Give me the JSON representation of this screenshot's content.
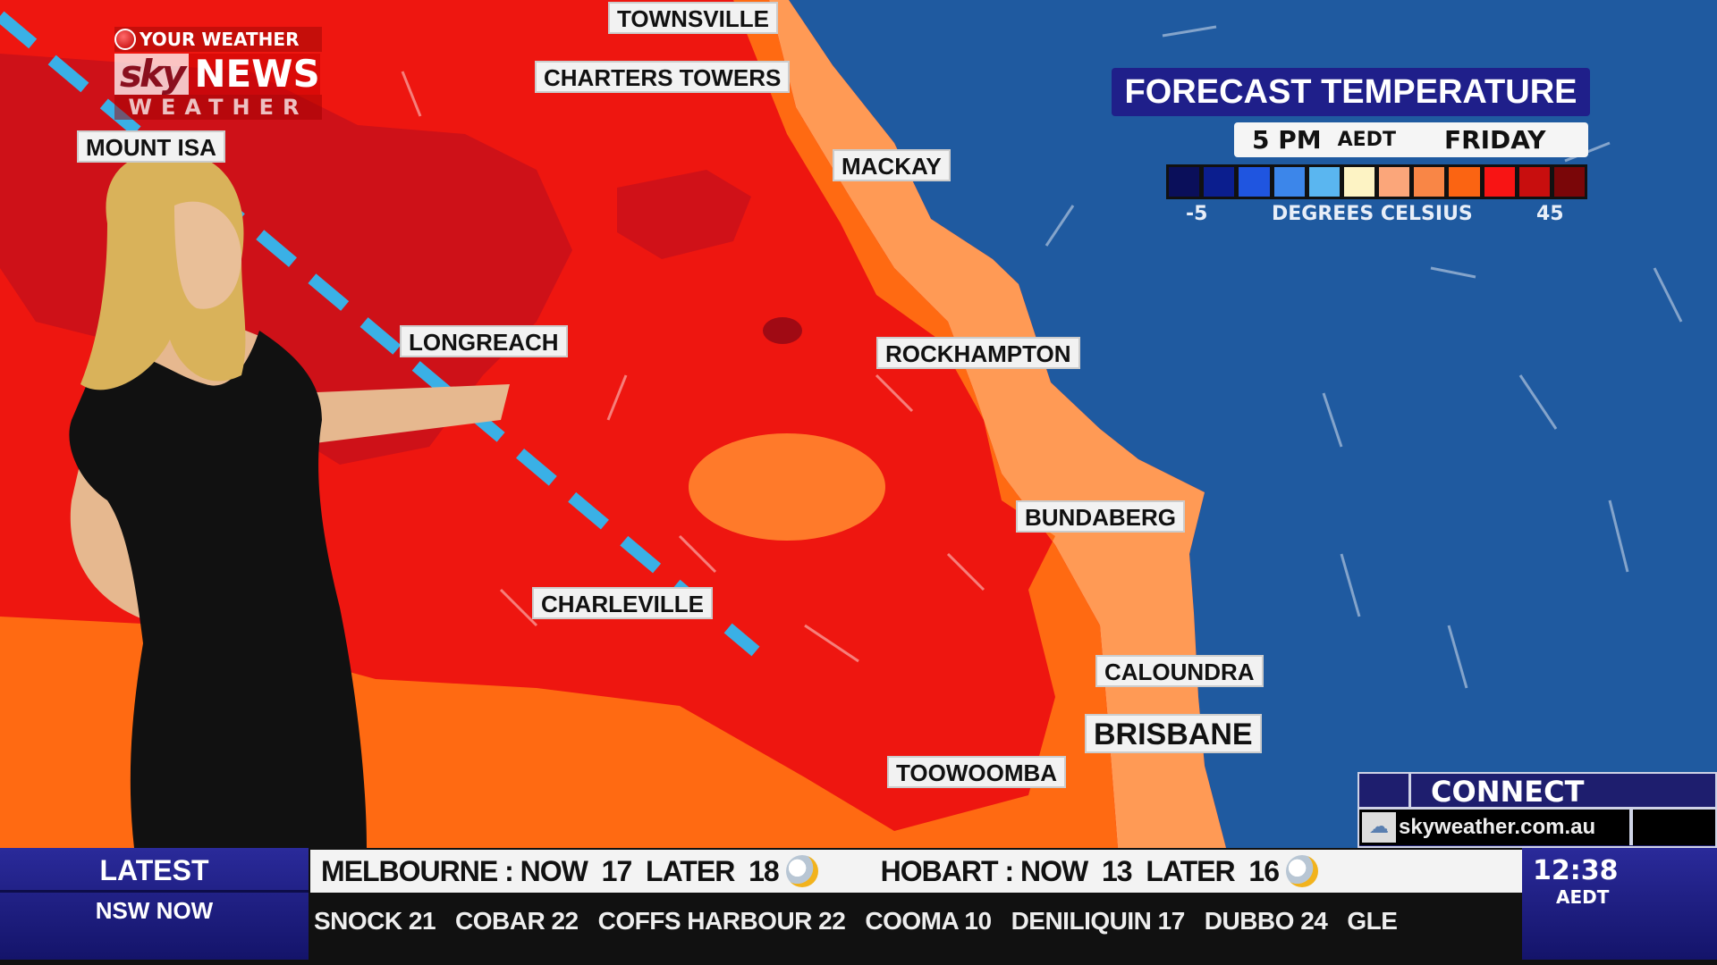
{
  "logo": {
    "line1": "YOUR WEATHER",
    "brand_sky": "sky",
    "brand_news": "NEWS",
    "line3": "WEATHER"
  },
  "map": {
    "cities": [
      {
        "name": "TOWNSVILLE"
      },
      {
        "name": "CHARTERS TOWERS"
      },
      {
        "name": "MOUNT ISA"
      },
      {
        "name": "MACKAY"
      },
      {
        "name": "LONGREACH"
      },
      {
        "name": "ROCKHAMPTON"
      },
      {
        "name": "BUNDABERG"
      },
      {
        "name": "CHARLEVILLE"
      },
      {
        "name": "CALOUNDRA"
      },
      {
        "name": "BRISBANE"
      },
      {
        "name": "TOOWOOMBA"
      }
    ],
    "colors": {
      "sea": "#1f5aa0",
      "hot": "#ee1610",
      "very_hot": "#c8101a",
      "warm": "#ff6a12",
      "mild": "#ff9a55",
      "front": "#3ab0e6"
    }
  },
  "legend": {
    "title": "FORECAST TEMPERATURE",
    "time": "5 PM",
    "timezone": "AEDT",
    "day": "FRIDAY",
    "min_label": "-5",
    "max_label": "45",
    "unit_label": "DEGREES CELSIUS",
    "scale_colors": [
      "#0a0f5a",
      "#0b1e8e",
      "#1f55e0",
      "#3c86ea",
      "#5ab6f0",
      "#fdf3c4",
      "#fba67a",
      "#f98646",
      "#fb6412",
      "#f81414",
      "#c80e0e",
      "#7a0608"
    ]
  },
  "connect": {
    "title": "CONNECT",
    "url": "skyweather.com.au",
    "icon": "weather-web-icon"
  },
  "ticker": {
    "section": "LATEST",
    "subsection": "NSW NOW",
    "top": [
      {
        "city": "MELBOURNE",
        "now": "17",
        "later": "18",
        "icon": "partly-cloudy-icon"
      },
      {
        "city": "HOBART",
        "now": "13",
        "later": "16",
        "icon": "showers-icon"
      }
    ],
    "now_label": "NOW",
    "later_label": "LATER",
    "bottom": [
      "SNOCK 21",
      "COBAR 22",
      "COFFS HARBOUR 22",
      "COOMA 10",
      "DENILIQUIN 17",
      "DUBBO 24",
      "GLE"
    ],
    "clock": "12:38",
    "clock_tz": "AEDT"
  }
}
